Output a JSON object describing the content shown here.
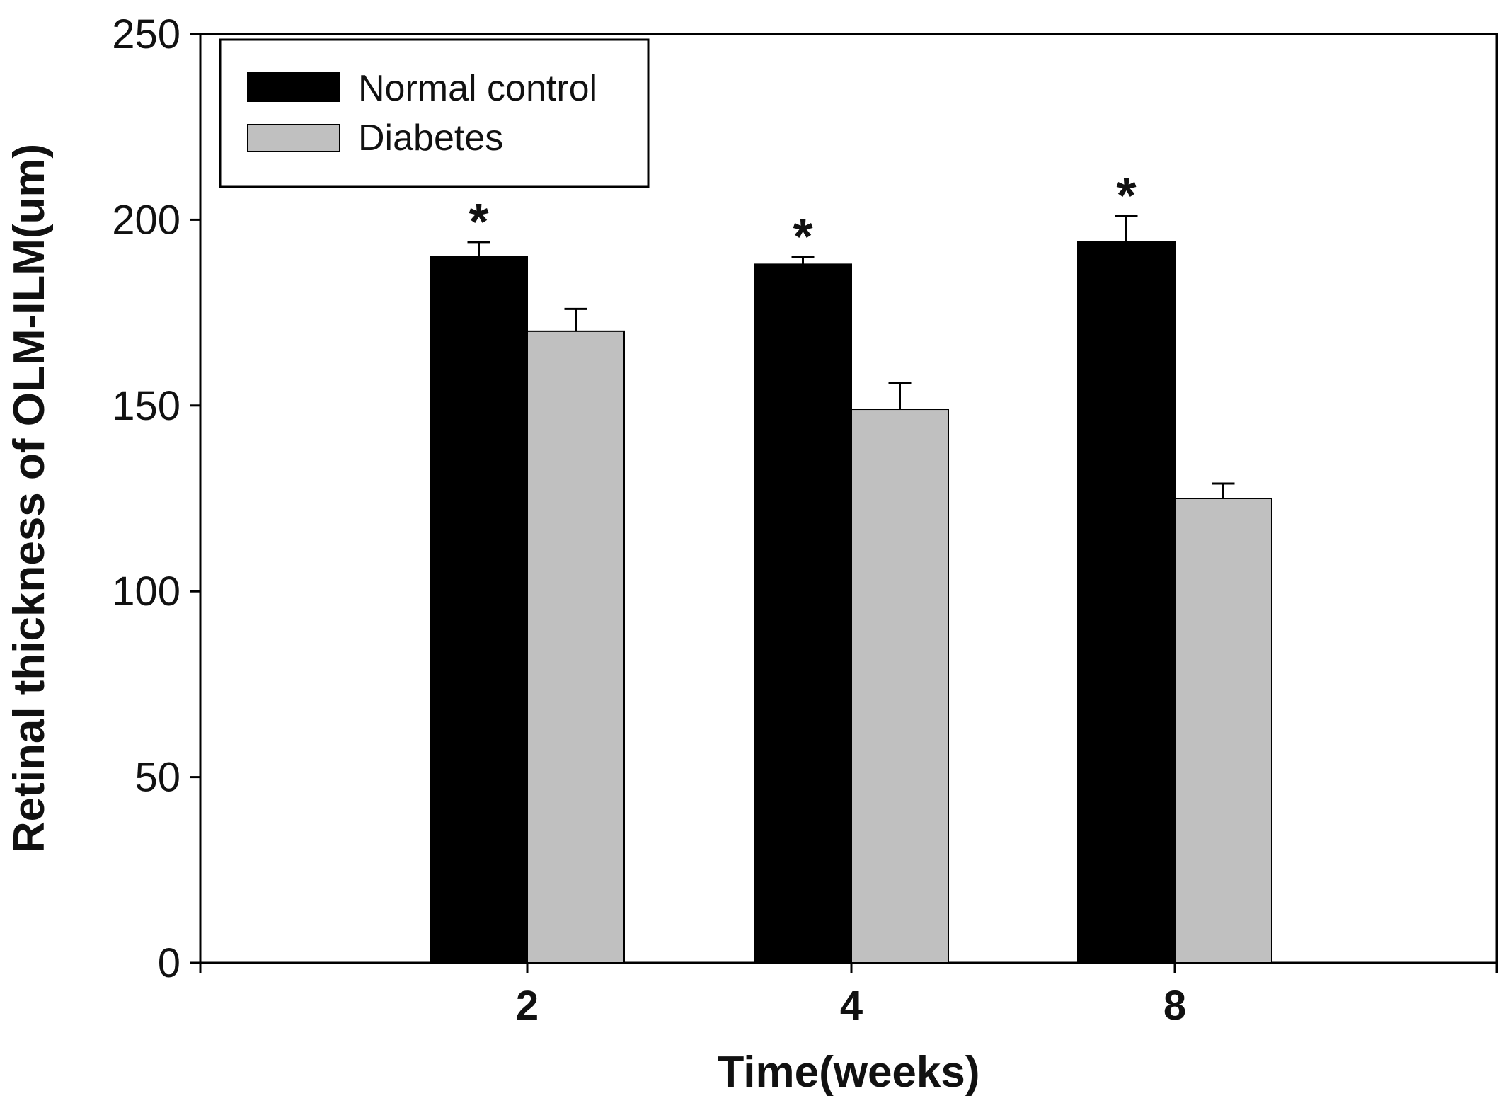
{
  "chart_data": {
    "type": "bar",
    "xlabel": "Time(weeks)",
    "ylabel": "Retinal thickness of OLM-ILM(um)",
    "categories": [
      "2",
      "4",
      "8"
    ],
    "ylim": [
      0,
      250
    ],
    "yticks": [
      "0",
      "50",
      "100",
      "150",
      "200",
      "250"
    ],
    "series": [
      {
        "name": "Normal control",
        "color": "#000000",
        "values": [
          190,
          188,
          194
        ],
        "errors": [
          4,
          2,
          7
        ],
        "annotations": [
          "*",
          "*",
          "*"
        ]
      },
      {
        "name": "Diabetes",
        "color": "#c0c0c0",
        "values": [
          170,
          149,
          125
        ],
        "errors": [
          6,
          7,
          4
        ],
        "annotations": [
          "",
          "",
          ""
        ]
      }
    ],
    "legend": {
      "position": "top-left",
      "boxed": true
    },
    "grid": false
  }
}
